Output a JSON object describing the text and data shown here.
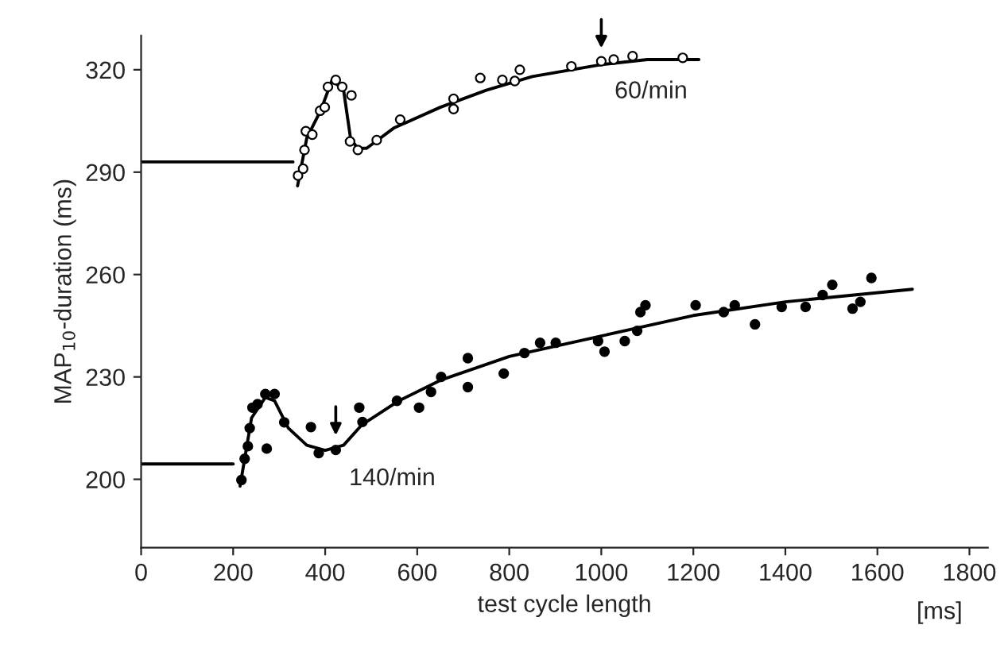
{
  "chart_data": {
    "type": "scatter",
    "xlabel": "test cycle length",
    "ylabel": "MAP$_{10}$-duration (ms)",
    "xlim": [
      0,
      1840
    ],
    "ylim": [
      180,
      330
    ],
    "xticks": [
      0,
      200,
      400,
      600,
      800,
      1000,
      1200,
      1400,
      1600,
      1800
    ],
    "yticks": [
      200,
      230,
      260,
      290,
      320
    ],
    "grid": false,
    "legend": false,
    "annotations": [
      {
        "text": "60/min",
        "x": 1000,
        "y": 322
      },
      {
        "text": "140/min",
        "x": 423,
        "y": 208.6
      },
      "[ms]"
    ],
    "series": [
      {
        "type": "line",
        "color": "#000000",
        "marker": "none",
        "line_style": "solid",
        "x": [
          0,
          330
        ],
        "values": [
          293,
          293
        ]
      },
      {
        "type": "line",
        "color": "#000000",
        "marker": "none",
        "line_style": "solid",
        "x": [
          340,
          360,
          390,
          415,
          440,
          455,
          470,
          490,
          550,
          650,
          750,
          850,
          1000,
          1100,
          1212
        ],
        "values": [
          286,
          300,
          308,
          317,
          314,
          300,
          297,
          297,
          303,
          309,
          314,
          318,
          321.5,
          323,
          323
        ]
      },
      {
        "type": "scatter",
        "color": "#ffffff",
        "marker": "circle",
        "x": [
          341,
          352,
          355,
          358,
          372,
          389,
          399,
          406,
          423,
          437,
          457,
          454,
          471,
          512,
          563,
          679,
          679,
          737,
          785,
          812,
          823,
          935,
          1000,
          1027,
          1068,
          1177
        ],
        "values": [
          289,
          291,
          296.5,
          302,
          301,
          308,
          309,
          315,
          317,
          315,
          312.5,
          299,
          296.5,
          299.4,
          305.4,
          308.5,
          311.5,
          317.6,
          317,
          316.7,
          320,
          321,
          322.5,
          323,
          324,
          323.5
        ]
      },
      {
        "type": "line",
        "color": "#000000",
        "marker": "none",
        "line_style": "solid",
        "x": [
          0,
          200
        ],
        "values": [
          204.5,
          204.5
        ]
      },
      {
        "type": "line",
        "color": "#000000",
        "marker": "none",
        "line_style": "solid",
        "x": [
          215,
          240,
          270,
          290,
          320,
          360,
          400,
          440,
          480,
          560,
          650,
          800,
          1000,
          1200,
          1400,
          1676
        ],
        "values": [
          198,
          218,
          224,
          223,
          215,
          210,
          208.5,
          210,
          216,
          223,
          229,
          236,
          242,
          248,
          252,
          255.7
        ]
      },
      {
        "type": "scatter",
        "color": "#000000",
        "marker": "circle",
        "x": [
          218,
          225,
          232,
          236,
          242,
          253,
          270,
          290,
          273,
          311,
          369,
          386,
          423,
          474,
          481,
          556,
          604,
          630,
          652,
          710,
          710,
          788,
          833,
          867,
          901,
          993,
          1007,
          1051,
          1078,
          1085,
          1096,
          1205,
          1266,
          1290,
          1334,
          1392,
          1444,
          1481,
          1502,
          1546,
          1563,
          1587
        ],
        "values": [
          199.8,
          206,
          209.7,
          215,
          221,
          222,
          225,
          225,
          209,
          216.7,
          215.3,
          207.7,
          208.6,
          221,
          216.8,
          223,
          221,
          225.6,
          230,
          235.5,
          227,
          231,
          237,
          240,
          240,
          240.5,
          237.4,
          240.5,
          243.5,
          249,
          251,
          251,
          249,
          251,
          245.4,
          250.5,
          250.5,
          254,
          257,
          250,
          252,
          259
        ]
      }
    ]
  }
}
